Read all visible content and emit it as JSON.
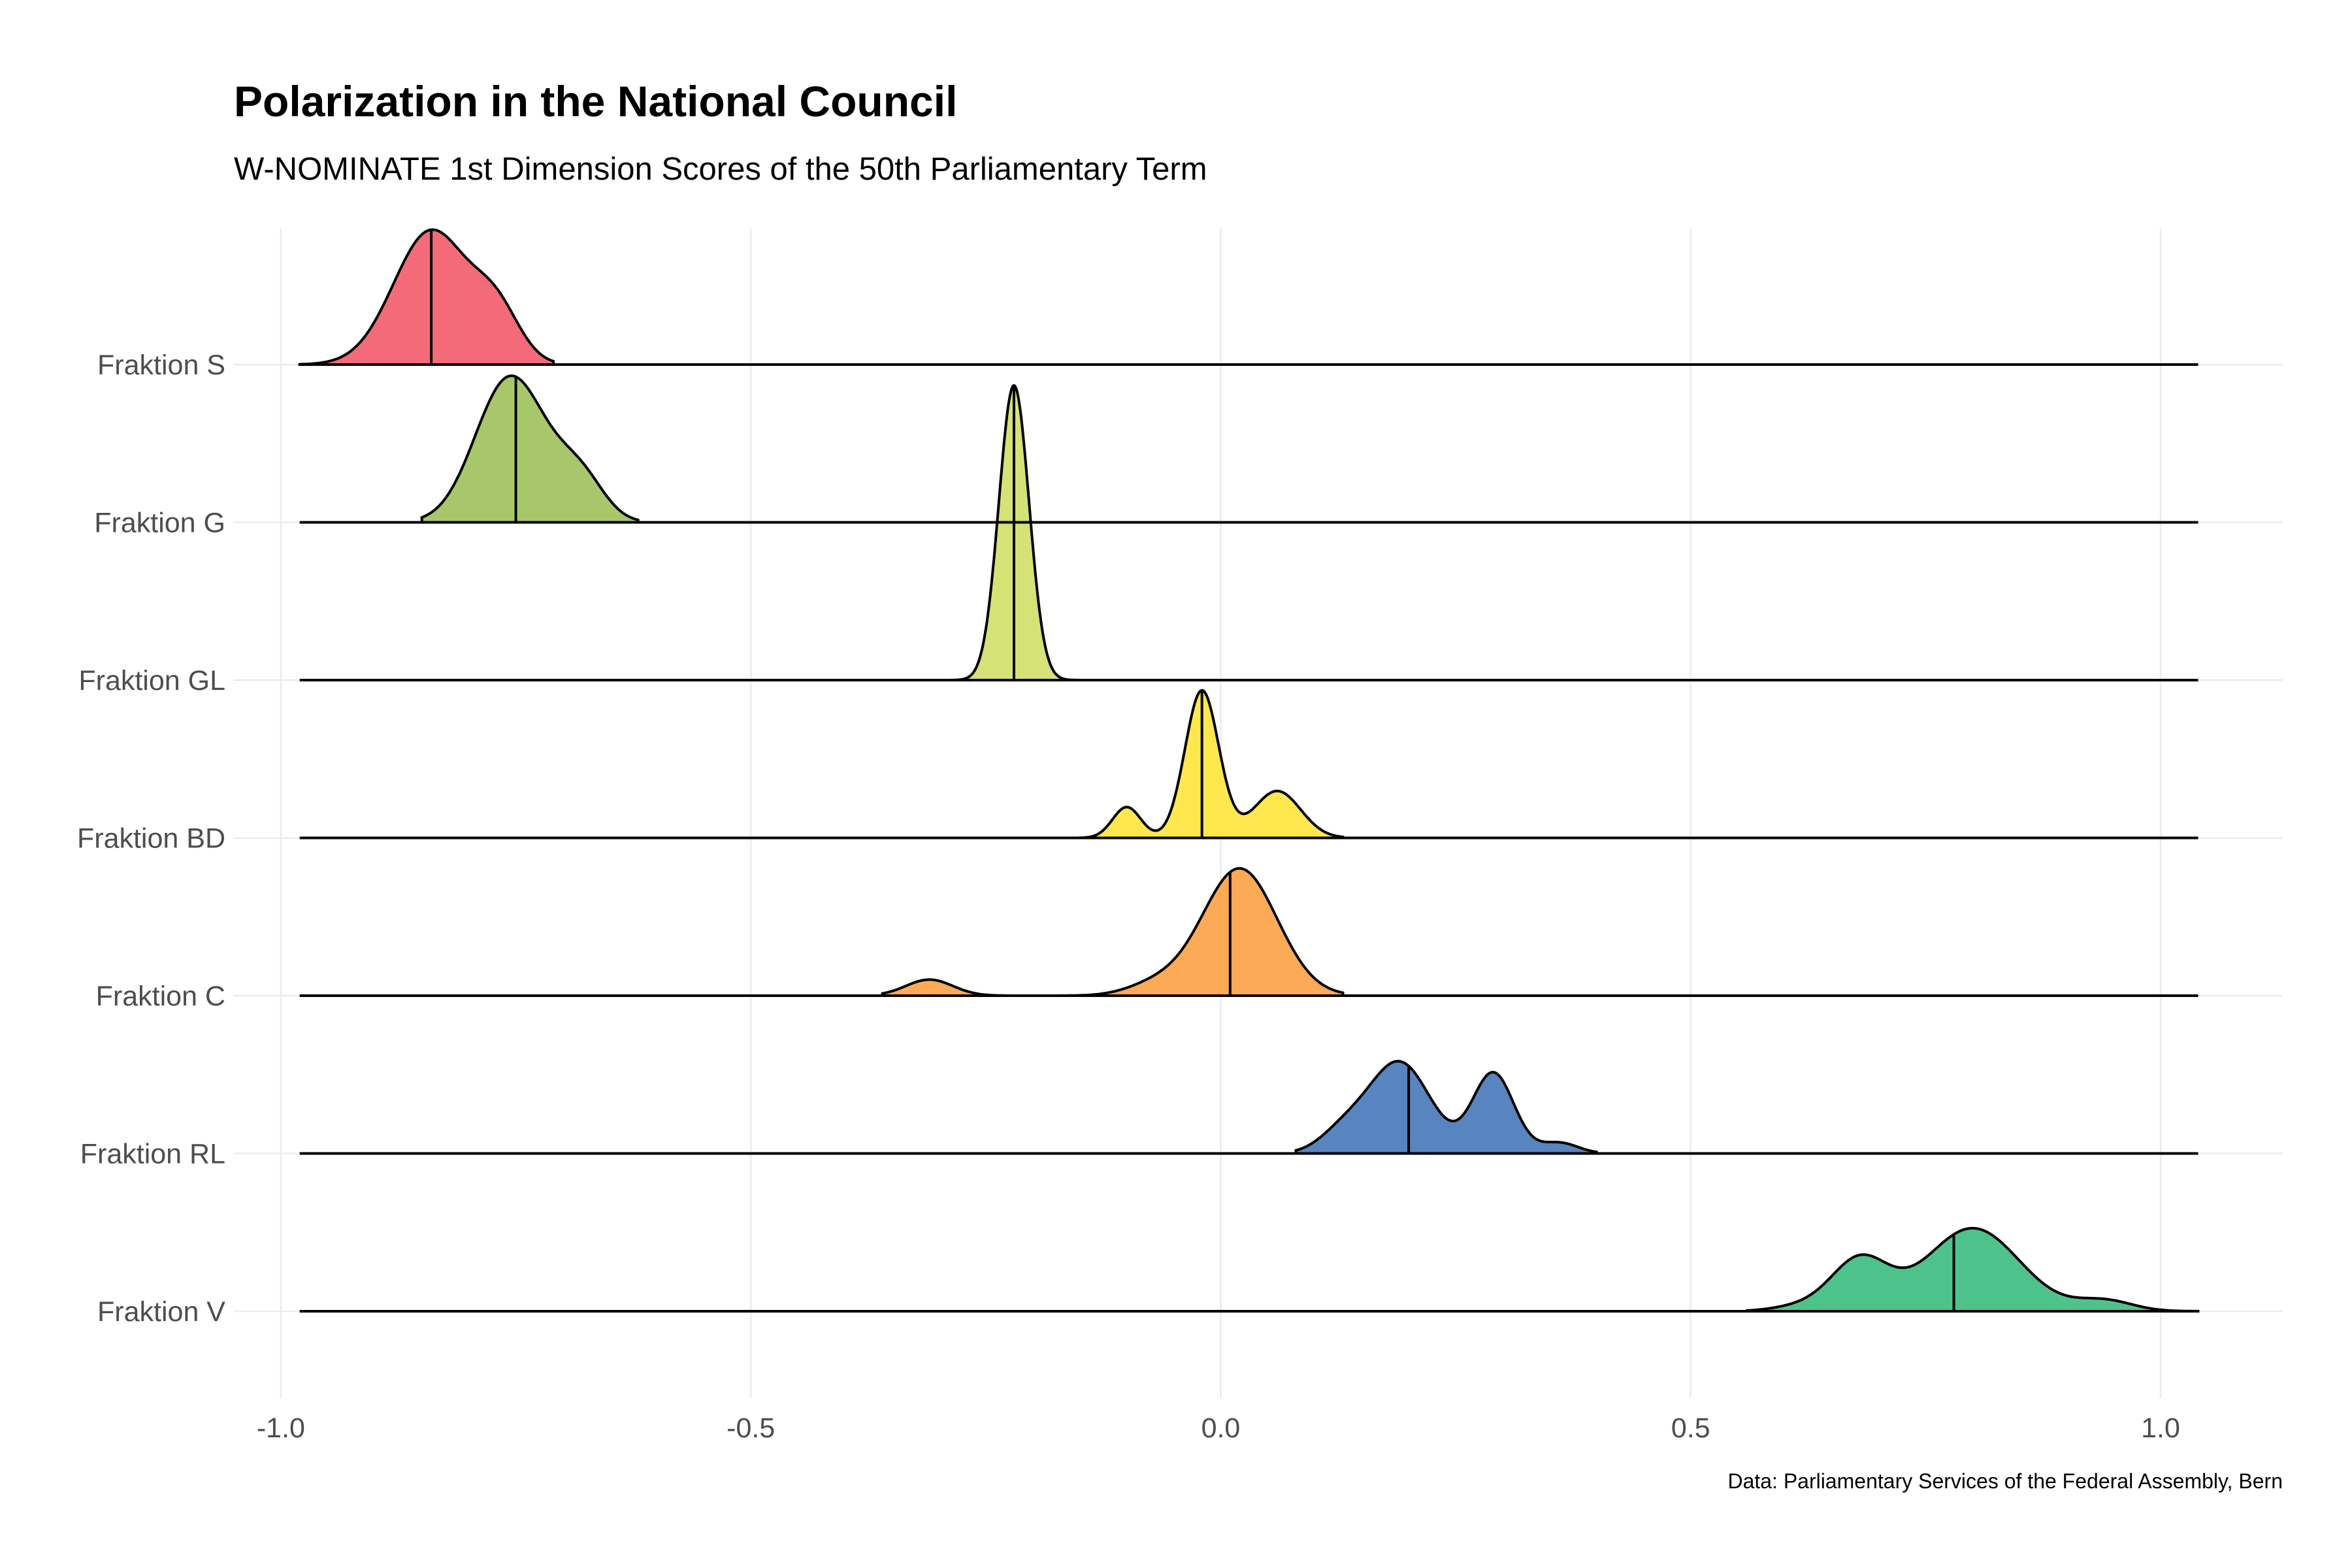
{
  "chart_data": {
    "type": "area",
    "subtype": "ridgeline",
    "title": "Polarization in the National Council",
    "subtitle": "W-NOMINATE 1st Dimension Scores of the 50th Parliamentary Term",
    "caption": "Data: Parliamentary Services of the Federal Assembly, Bern",
    "xlabel": "",
    "ylabel": "",
    "xlim": [
      -1.05,
      1.13
    ],
    "x_ticks": [
      "-1.0",
      "-0.5",
      "0.0",
      "0.5",
      "1.0"
    ],
    "x_tick_values": [
      -1.0,
      -0.5,
      0.0,
      0.5,
      1.0
    ],
    "grid": true,
    "legend": "none",
    "series": [
      {
        "name": "Fraktion S",
        "color": "#f36b78",
        "median": -0.84,
        "range": [
          -0.98,
          -0.71
        ],
        "peaks": [
          [
            -0.84,
            1.0,
            0.04
          ],
          [
            -0.77,
            0.35,
            0.025
          ]
        ]
      },
      {
        "name": "Fraktion G",
        "color": "#a8c76a",
        "median": -0.75,
        "range": [
          -0.85,
          -0.62
        ],
        "peaks": [
          [
            -0.76,
            1.0,
            0.035
          ],
          [
            -0.68,
            0.3,
            0.025
          ],
          [
            -0.72,
            0.2,
            0.03
          ]
        ]
      },
      {
        "name": "Fraktion GL",
        "color": "#d4e276",
        "median": -0.22,
        "range": [
          -0.29,
          -0.15
        ],
        "peaks": [
          [
            -0.22,
            2.2,
            0.016
          ]
        ]
      },
      {
        "name": "Fraktion BD",
        "color": "#ffe84e",
        "median": -0.02,
        "range": [
          -0.15,
          0.13
        ],
        "peaks": [
          [
            -0.02,
            1.1,
            0.018
          ],
          [
            0.06,
            0.35,
            0.025
          ],
          [
            -0.1,
            0.23,
            0.015
          ]
        ]
      },
      {
        "name": "Fraktion C",
        "color": "#fdaa57",
        "median": 0.01,
        "range": [
          -0.36,
          0.13
        ],
        "peaks": [
          [
            0.02,
            0.95,
            0.04
          ],
          [
            -0.31,
            0.12,
            0.025
          ],
          [
            -0.07,
            0.08,
            0.03
          ]
        ]
      },
      {
        "name": "Fraktion RL",
        "color": "#5884bf",
        "median": 0.2,
        "range": [
          0.08,
          0.4
        ],
        "peaks": [
          [
            0.19,
            0.68,
            0.033
          ],
          [
            0.29,
            0.6,
            0.022
          ],
          [
            0.13,
            0.15,
            0.025
          ],
          [
            0.36,
            0.08,
            0.02
          ]
        ]
      },
      {
        "name": "Fraktion V",
        "color": "#4dc38b",
        "median": 0.78,
        "range": [
          0.56,
          1.04
        ],
        "peaks": [
          [
            0.8,
            0.62,
            0.05
          ],
          [
            0.68,
            0.38,
            0.03
          ],
          [
            0.94,
            0.08,
            0.03
          ],
          [
            0.62,
            0.04,
            0.03
          ]
        ]
      }
    ]
  }
}
